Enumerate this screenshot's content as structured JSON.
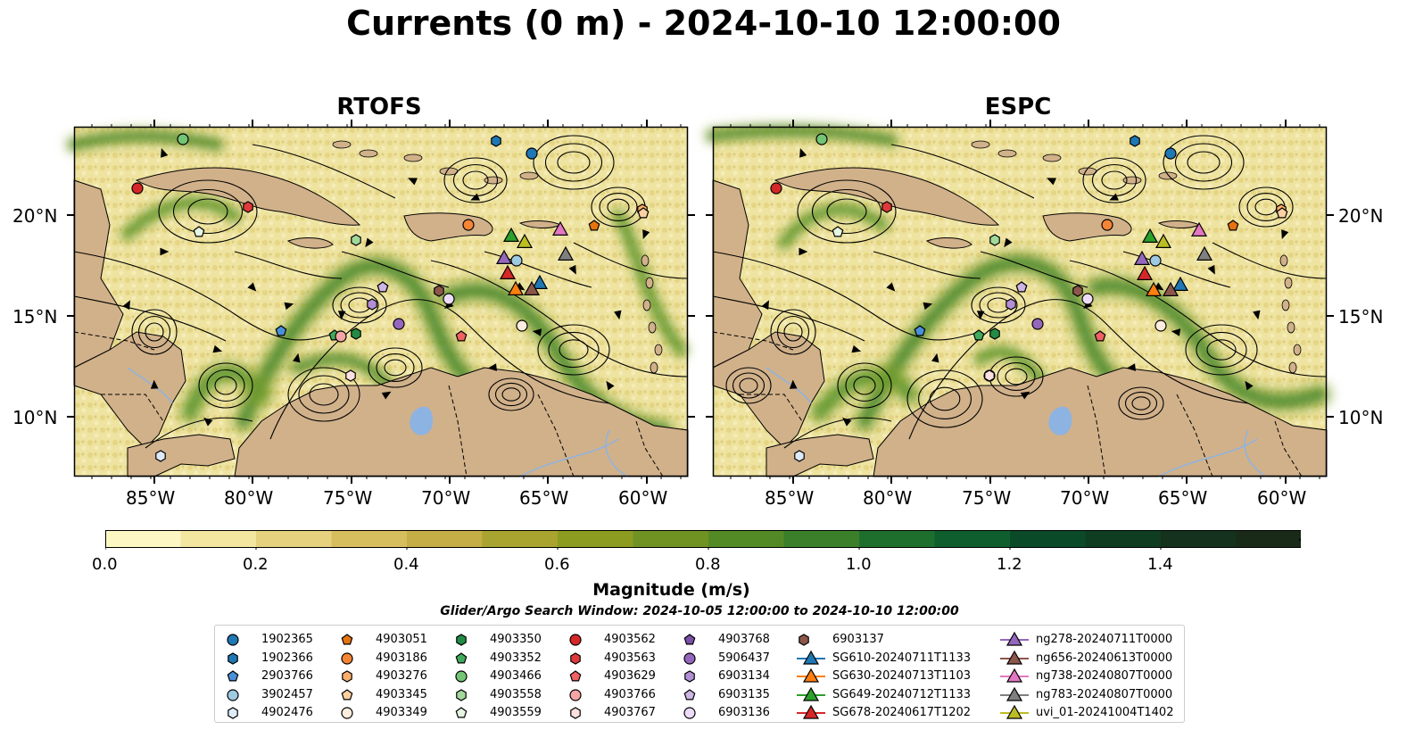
{
  "title": "Currents (0 m) - 2024-10-10 12:00:00",
  "panels": [
    {
      "title": "RTOFS"
    },
    {
      "title": "ESPC"
    }
  ],
  "axes": {
    "lon_labels": [
      "85°W",
      "80°W",
      "75°W",
      "70°W",
      "65°W",
      "60°W"
    ],
    "lat_labels": [
      "20°N",
      "15°N",
      "10°N"
    ]
  },
  "colorbar": {
    "title": "Magnitude (m/s)",
    "tick_labels": [
      "0.0",
      "0.2",
      "0.4",
      "0.6",
      "0.8",
      "1.0",
      "1.2",
      "1.4"
    ],
    "colors": [
      "#fdf7c4",
      "#f3e6a0",
      "#e5d17e",
      "#d6bd5e",
      "#c4ae45",
      "#a8a42f",
      "#8c9c21",
      "#6f9223",
      "#548a26",
      "#3b7f2a",
      "#1e6f2e",
      "#0f5f2e",
      "#0b4a28",
      "#0f3d22",
      "#14321d",
      "#192a18",
      "#1a2416"
    ],
    "extend": "max"
  },
  "search_window": "Glider/Argo Search Window: 2024-10-05 12:00:00 to 2024-10-10 12:00:00",
  "legend": [
    {
      "label": "1902365",
      "marker": "circle",
      "color": "#1f77b4"
    },
    {
      "label": "1902366",
      "marker": "hexagon",
      "color": "#1f77b4"
    },
    {
      "label": "2903766",
      "marker": "pentagon",
      "color": "#4a90d9"
    },
    {
      "label": "3902457",
      "marker": "circle",
      "color": "#9ecae1"
    },
    {
      "label": "4902476",
      "marker": "hexagon",
      "color": "#deebf7"
    },
    {
      "label": "4903051",
      "marker": "pentagon",
      "color": "#e6730f"
    },
    {
      "label": "4903186",
      "marker": "circle",
      "color": "#f58536"
    },
    {
      "label": "4903276",
      "marker": "hexagon",
      "color": "#fdae6b"
    },
    {
      "label": "4903345",
      "marker": "pentagon",
      "color": "#fdd0a2"
    },
    {
      "label": "4903349",
      "marker": "circle",
      "color": "#feedde"
    },
    {
      "label": "4903350",
      "marker": "hexagon",
      "color": "#238b45"
    },
    {
      "label": "4903352",
      "marker": "pentagon",
      "color": "#41ab5d"
    },
    {
      "label": "4903466",
      "marker": "circle",
      "color": "#74c476"
    },
    {
      "label": "4903558",
      "marker": "hexagon",
      "color": "#a1d99b"
    },
    {
      "label": "4903559",
      "marker": "pentagon",
      "color": "#e5f5e0"
    },
    {
      "label": "4903562",
      "marker": "circle",
      "color": "#d62728"
    },
    {
      "label": "4903563",
      "marker": "hexagon",
      "color": "#e0393a"
    },
    {
      "label": "4903629",
      "marker": "pentagon",
      "color": "#f06262"
    },
    {
      "label": "4903766",
      "marker": "circle",
      "color": "#f4a5a5"
    },
    {
      "label": "4903767",
      "marker": "hexagon",
      "color": "#fde0e0"
    },
    {
      "label": "4903768",
      "marker": "pentagon",
      "color": "#7b4fa8"
    },
    {
      "label": "5906437",
      "marker": "circle",
      "color": "#9467bd"
    },
    {
      "label": "6903134",
      "marker": "hexagon",
      "color": "#b38fd6"
    },
    {
      "label": "6903135",
      "marker": "pentagon",
      "color": "#cdb5e6"
    },
    {
      "label": "6903136",
      "marker": "circle",
      "color": "#ecdcf7"
    },
    {
      "label": "6903137",
      "marker": "hexagon",
      "color": "#8c564b"
    },
    {
      "label": "SG610-20240711T1133",
      "marker": "triangle-line",
      "color": "#1f77b4"
    },
    {
      "label": "SG630-20240713T1103",
      "marker": "triangle-line",
      "color": "#ff7f0e"
    },
    {
      "label": "SG649-20240712T1133",
      "marker": "triangle-line",
      "color": "#2ca02c"
    },
    {
      "label": "SG678-20240617T1202",
      "marker": "triangle-line",
      "color": "#d62728"
    },
    {
      "label": "ng278-20240711T0000",
      "marker": "triangle-line",
      "color": "#9467bd"
    },
    {
      "label": "ng656-20240613T0000",
      "marker": "triangle-line",
      "color": "#8c564b"
    },
    {
      "label": "ng738-20240807T0000",
      "marker": "triangle-line",
      "color": "#e377c2"
    },
    {
      "label": "ng783-20240807T0000",
      "marker": "triangle-line",
      "color": "#7f7f7f"
    },
    {
      "label": "uvi_01-20241004T1402",
      "marker": "triangle-line",
      "color": "#bcbd22"
    }
  ]
}
